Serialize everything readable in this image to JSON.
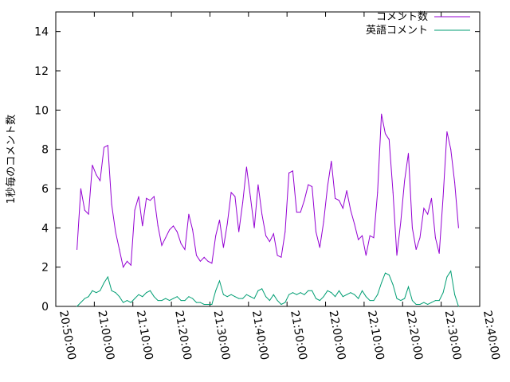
{
  "chart_data": {
    "type": "line",
    "ylabel": "1秒毎のコメント数",
    "xlabel": "",
    "ylim": [
      0,
      15
    ],
    "xlim": [
      "20:50:00",
      "22:40:00"
    ],
    "yticks": [
      "0",
      "2",
      "4",
      "6",
      "8",
      "10",
      "12",
      "14"
    ],
    "xticks": [
      "20:50:00",
      "21:00:00",
      "21:10:00",
      "21:20:00",
      "21:30:00",
      "21:40:00",
      "21:50:00",
      "22:00:00",
      "22:10:00",
      "22:20:00",
      "22:30:00",
      "22:40:00"
    ],
    "grid": false,
    "legend_position": "top-right",
    "series": [
      {
        "name": "コメント数",
        "color": "#9400d3",
        "points": [
          [
            "20:55:30",
            2.9
          ],
          [
            "20:56:30",
            6.0
          ],
          [
            "20:57:30",
            4.9
          ],
          [
            "20:58:30",
            4.7
          ],
          [
            "20:59:30",
            7.2
          ],
          [
            "21:00:30",
            6.7
          ],
          [
            "21:01:30",
            6.4
          ],
          [
            "21:02:30",
            8.1
          ],
          [
            "21:03:30",
            8.2
          ],
          [
            "21:04:30",
            5.2
          ],
          [
            "21:05:30",
            3.8
          ],
          [
            "21:06:30",
            2.9
          ],
          [
            "21:07:30",
            2.0
          ],
          [
            "21:08:30",
            2.3
          ],
          [
            "21:09:30",
            2.1
          ],
          [
            "21:10:30",
            4.9
          ],
          [
            "21:11:30",
            5.6
          ],
          [
            "21:12:30",
            4.1
          ],
          [
            "21:13:30",
            5.5
          ],
          [
            "21:14:30",
            5.4
          ],
          [
            "21:15:30",
            5.6
          ],
          [
            "21:16:30",
            4.1
          ],
          [
            "21:17:30",
            3.1
          ],
          [
            "21:18:30",
            3.5
          ],
          [
            "21:19:30",
            3.9
          ],
          [
            "21:20:30",
            4.1
          ],
          [
            "21:21:30",
            3.8
          ],
          [
            "21:22:30",
            3.2
          ],
          [
            "21:23:30",
            2.9
          ],
          [
            "21:24:30",
            4.7
          ],
          [
            "21:25:30",
            3.9
          ],
          [
            "21:26:30",
            2.6
          ],
          [
            "21:27:30",
            2.3
          ],
          [
            "21:28:30",
            2.5
          ],
          [
            "21:29:30",
            2.3
          ],
          [
            "21:30:30",
            2.2
          ],
          [
            "21:31:30",
            3.6
          ],
          [
            "21:32:30",
            4.4
          ],
          [
            "21:33:30",
            3.0
          ],
          [
            "21:34:30",
            4.2
          ],
          [
            "21:35:30",
            5.8
          ],
          [
            "21:36:30",
            5.6
          ],
          [
            "21:37:30",
            3.8
          ],
          [
            "21:38:30",
            5.3
          ],
          [
            "21:39:30",
            7.1
          ],
          [
            "21:40:30",
            5.6
          ],
          [
            "21:41:30",
            4.0
          ],
          [
            "21:42:30",
            6.2
          ],
          [
            "21:43:30",
            4.7
          ],
          [
            "21:44:30",
            3.6
          ],
          [
            "21:45:30",
            3.3
          ],
          [
            "21:46:30",
            3.7
          ],
          [
            "21:47:30",
            2.6
          ],
          [
            "21:48:30",
            2.5
          ],
          [
            "21:49:30",
            3.8
          ],
          [
            "21:50:30",
            6.8
          ],
          [
            "21:51:30",
            6.9
          ],
          [
            "21:52:30",
            4.8
          ],
          [
            "21:53:30",
            4.8
          ],
          [
            "21:54:30",
            5.4
          ],
          [
            "21:55:30",
            6.2
          ],
          [
            "21:56:30",
            6.1
          ],
          [
            "21:57:30",
            3.8
          ],
          [
            "21:58:30",
            3.0
          ],
          [
            "21:59:30",
            4.3
          ],
          [
            "22:00:30",
            6.1
          ],
          [
            "22:01:30",
            7.4
          ],
          [
            "22:02:30",
            5.5
          ],
          [
            "22:03:30",
            5.4
          ],
          [
            "22:04:30",
            5.0
          ],
          [
            "22:05:30",
            5.9
          ],
          [
            "22:06:30",
            4.9
          ],
          [
            "22:07:30",
            4.2
          ],
          [
            "22:08:30",
            3.4
          ],
          [
            "22:09:30",
            3.6
          ],
          [
            "22:10:30",
            2.6
          ],
          [
            "22:11:30",
            3.6
          ],
          [
            "22:12:30",
            3.5
          ],
          [
            "22:13:30",
            5.8
          ],
          [
            "22:14:30",
            9.8
          ],
          [
            "22:15:30",
            8.8
          ],
          [
            "22:16:30",
            8.5
          ],
          [
            "22:17:30",
            5.8
          ],
          [
            "22:18:30",
            2.6
          ],
          [
            "22:19:30",
            4.3
          ],
          [
            "22:20:30",
            6.4
          ],
          [
            "22:21:30",
            7.8
          ],
          [
            "22:22:30",
            4.0
          ],
          [
            "22:23:30",
            2.9
          ],
          [
            "22:24:30",
            3.5
          ],
          [
            "22:25:30",
            5.0
          ],
          [
            "22:26:30",
            4.7
          ],
          [
            "22:27:30",
            5.5
          ],
          [
            "22:28:30",
            3.5
          ],
          [
            "22:29:30",
            2.7
          ],
          [
            "22:30:30",
            5.6
          ],
          [
            "22:31:30",
            8.9
          ],
          [
            "22:32:30",
            8.0
          ],
          [
            "22:33:30",
            6.3
          ],
          [
            "22:34:30",
            4.0
          ]
        ]
      },
      {
        "name": "英語コメント",
        "color": "#009e73",
        "points": [
          [
            "20:55:30",
            0.0
          ],
          [
            "20:56:30",
            0.2
          ],
          [
            "20:57:30",
            0.4
          ],
          [
            "20:58:30",
            0.5
          ],
          [
            "20:59:30",
            0.8
          ],
          [
            "21:00:30",
            0.7
          ],
          [
            "21:01:30",
            0.8
          ],
          [
            "21:02:30",
            1.2
          ],
          [
            "21:03:30",
            1.5
          ],
          [
            "21:04:30",
            0.8
          ],
          [
            "21:05:30",
            0.7
          ],
          [
            "21:06:30",
            0.5
          ],
          [
            "21:07:30",
            0.2
          ],
          [
            "21:08:30",
            0.3
          ],
          [
            "21:09:30",
            0.2
          ],
          [
            "21:10:30",
            0.4
          ],
          [
            "21:11:30",
            0.6
          ],
          [
            "21:12:30",
            0.5
          ],
          [
            "21:13:30",
            0.7
          ],
          [
            "21:14:30",
            0.8
          ],
          [
            "21:15:30",
            0.5
          ],
          [
            "21:16:30",
            0.3
          ],
          [
            "21:17:30",
            0.3
          ],
          [
            "21:18:30",
            0.4
          ],
          [
            "21:19:30",
            0.3
          ],
          [
            "21:20:30",
            0.4
          ],
          [
            "21:21:30",
            0.5
          ],
          [
            "21:22:30",
            0.3
          ],
          [
            "21:23:30",
            0.3
          ],
          [
            "21:24:30",
            0.5
          ],
          [
            "21:25:30",
            0.4
          ],
          [
            "21:26:30",
            0.2
          ],
          [
            "21:27:30",
            0.2
          ],
          [
            "21:28:30",
            0.1
          ],
          [
            "21:29:30",
            0.1
          ],
          [
            "21:30:30",
            0.1
          ],
          [
            "21:31:30",
            0.8
          ],
          [
            "21:32:30",
            1.3
          ],
          [
            "21:33:30",
            0.6
          ],
          [
            "21:34:30",
            0.5
          ],
          [
            "21:35:30",
            0.6
          ],
          [
            "21:36:30",
            0.5
          ],
          [
            "21:37:30",
            0.4
          ],
          [
            "21:38:30",
            0.4
          ],
          [
            "21:39:30",
            0.6
          ],
          [
            "21:40:30",
            0.5
          ],
          [
            "21:41:30",
            0.4
          ],
          [
            "21:42:30",
            0.8
          ],
          [
            "21:43:30",
            0.9
          ],
          [
            "21:44:30",
            0.5
          ],
          [
            "21:45:30",
            0.3
          ],
          [
            "21:46:30",
            0.6
          ],
          [
            "21:47:30",
            0.3
          ],
          [
            "21:48:30",
            0.1
          ],
          [
            "21:49:30",
            0.2
          ],
          [
            "21:50:30",
            0.6
          ],
          [
            "21:51:30",
            0.7
          ],
          [
            "21:52:30",
            0.6
          ],
          [
            "21:53:30",
            0.7
          ],
          [
            "21:54:30",
            0.6
          ],
          [
            "21:55:30",
            0.8
          ],
          [
            "21:56:30",
            0.8
          ],
          [
            "21:57:30",
            0.4
          ],
          [
            "21:58:30",
            0.3
          ],
          [
            "21:59:30",
            0.5
          ],
          [
            "22:00:30",
            0.8
          ],
          [
            "22:01:30",
            0.7
          ],
          [
            "22:02:30",
            0.5
          ],
          [
            "22:03:30",
            0.8
          ],
          [
            "22:04:30",
            0.5
          ],
          [
            "22:05:30",
            0.6
          ],
          [
            "22:06:30",
            0.7
          ],
          [
            "22:07:30",
            0.6
          ],
          [
            "22:08:30",
            0.4
          ],
          [
            "22:09:30",
            0.8
          ],
          [
            "22:10:30",
            0.5
          ],
          [
            "22:11:30",
            0.3
          ],
          [
            "22:12:30",
            0.3
          ],
          [
            "22:13:30",
            0.6
          ],
          [
            "22:14:30",
            1.2
          ],
          [
            "22:15:30",
            1.7
          ],
          [
            "22:16:30",
            1.6
          ],
          [
            "22:17:30",
            1.1
          ],
          [
            "22:18:30",
            0.4
          ],
          [
            "22:19:30",
            0.3
          ],
          [
            "22:20:30",
            0.4
          ],
          [
            "22:21:30",
            1.0
          ],
          [
            "22:22:30",
            0.3
          ],
          [
            "22:23:30",
            0.1
          ],
          [
            "22:24:30",
            0.1
          ],
          [
            "22:25:30",
            0.2
          ],
          [
            "22:26:30",
            0.1
          ],
          [
            "22:27:30",
            0.2
          ],
          [
            "22:28:30",
            0.3
          ],
          [
            "22:29:30",
            0.3
          ],
          [
            "22:30:30",
            0.7
          ],
          [
            "22:31:30",
            1.5
          ],
          [
            "22:32:30",
            1.8
          ],
          [
            "22:33:30",
            0.6
          ],
          [
            "22:34:30",
            0.0
          ]
        ]
      }
    ]
  }
}
